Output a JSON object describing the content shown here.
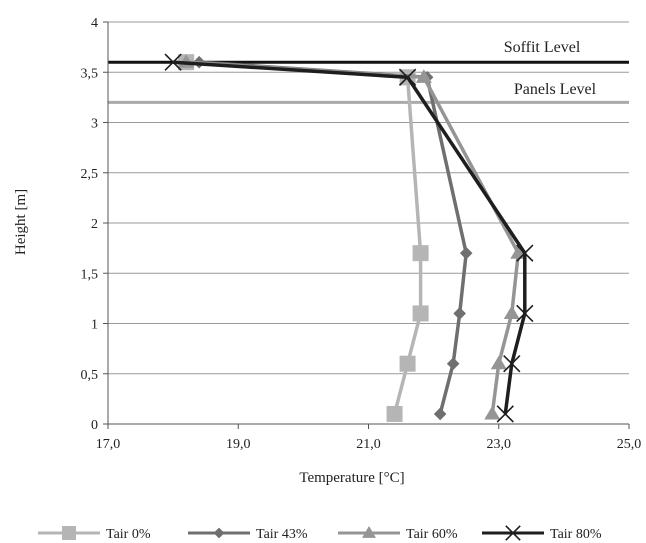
{
  "chart_data": {
    "type": "line",
    "xlabel": "Temperature [°C]",
    "ylabel": "Height [m]",
    "xlim": [
      17,
      25
    ],
    "ylim": [
      0,
      4
    ],
    "x_ticks": [
      "17,0",
      "19,0",
      "21,0",
      "23,0",
      "25,0"
    ],
    "y_ticks": [
      "0",
      "0,5",
      "1",
      "1,5",
      "2",
      "2,5",
      "3",
      "3,5",
      "4"
    ],
    "grid": "horizontal",
    "legend_position": "bottom",
    "reference_lines": [
      {
        "label": "Soffit Level",
        "y": 3.6,
        "color": "#111111"
      },
      {
        "label": "Panels Level",
        "y": 3.2,
        "color": "#aaaaaa"
      }
    ],
    "series": [
      {
        "name": "Tair 0%",
        "color": "#b5b5b5",
        "marker": "square",
        "x": [
          21.4,
          21.6,
          21.8,
          21.8,
          21.6,
          18.2
        ],
        "y": [
          0.1,
          0.6,
          1.1,
          1.7,
          3.45,
          3.6
        ]
      },
      {
        "name": "Tair 43%",
        "color": "#6f6f6f",
        "marker": "diamond",
        "x": [
          22.1,
          22.3,
          22.4,
          22.5,
          21.9,
          18.4
        ],
        "y": [
          0.1,
          0.6,
          1.1,
          1.7,
          3.45,
          3.6
        ]
      },
      {
        "name": "Tair 60%",
        "color": "#959595",
        "marker": "triangle",
        "x": [
          22.9,
          23.0,
          23.2,
          23.3,
          21.85,
          18.2
        ],
        "y": [
          0.1,
          0.6,
          1.1,
          1.7,
          3.45,
          3.6
        ]
      },
      {
        "name": "Tair 80%",
        "color": "#1e1e1e",
        "marker": "x",
        "x": [
          23.1,
          23.2,
          23.4,
          23.4,
          21.6,
          18.0
        ],
        "y": [
          0.1,
          0.6,
          1.1,
          1.7,
          3.45,
          3.6
        ]
      }
    ]
  }
}
